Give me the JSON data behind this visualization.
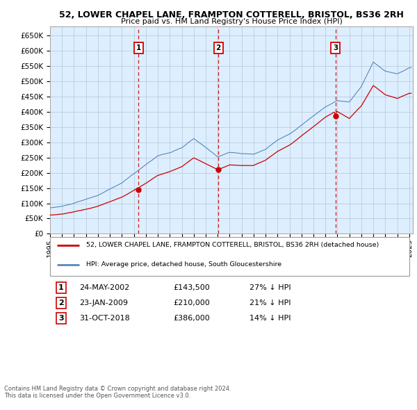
{
  "title": "52, LOWER CHAPEL LANE, FRAMPTON COTTERELL, BRISTOL, BS36 2RH",
  "subtitle": "Price paid vs. HM Land Registry's House Price Index (HPI)",
  "ylim": [
    0,
    680000
  ],
  "yticks": [
    0,
    50000,
    100000,
    150000,
    200000,
    250000,
    300000,
    350000,
    400000,
    450000,
    500000,
    550000,
    600000,
    650000
  ],
  "ytick_labels": [
    "£0",
    "£50K",
    "£100K",
    "£150K",
    "£200K",
    "£250K",
    "£300K",
    "£350K",
    "£400K",
    "£450K",
    "£500K",
    "£550K",
    "£600K",
    "£650K"
  ],
  "sales": [
    {
      "label": "1",
      "date": "24-MAY-2002",
      "price": 143500,
      "year": 2002.38,
      "hpi_pct": "27% ↓ HPI"
    },
    {
      "label": "2",
      "date": "23-JAN-2009",
      "price": 210000,
      "year": 2009.05,
      "hpi_pct": "21% ↓ HPI"
    },
    {
      "label": "3",
      "date": "31-OCT-2018",
      "price": 386000,
      "year": 2018.83,
      "hpi_pct": "14% ↓ HPI"
    }
  ],
  "line_color_red": "#cc0000",
  "line_color_blue": "#5588bb",
  "sale_line_color": "#cc0000",
  "box_color": "#cc0000",
  "background_color": "#ddeeff",
  "grid_color": "#bbccdd",
  "legend_label_red": "52, LOWER CHAPEL LANE, FRAMPTON COTTERELL, BRISTOL, BS36 2RH (detached house)",
  "legend_label_blue": "HPI: Average price, detached house, South Gloucestershire",
  "footer1": "Contains HM Land Registry data © Crown copyright and database right 2024.",
  "footer2": "This data is licensed under the Open Government Licence v3.0.",
  "xlim": [
    1995.0,
    2025.3
  ],
  "xticks": [
    1995,
    1996,
    1997,
    1998,
    1999,
    2000,
    2001,
    2002,
    2003,
    2004,
    2005,
    2006,
    2007,
    2008,
    2009,
    2010,
    2011,
    2012,
    2013,
    2014,
    2015,
    2016,
    2017,
    2018,
    2019,
    2020,
    2021,
    2022,
    2023,
    2024,
    2025
  ]
}
